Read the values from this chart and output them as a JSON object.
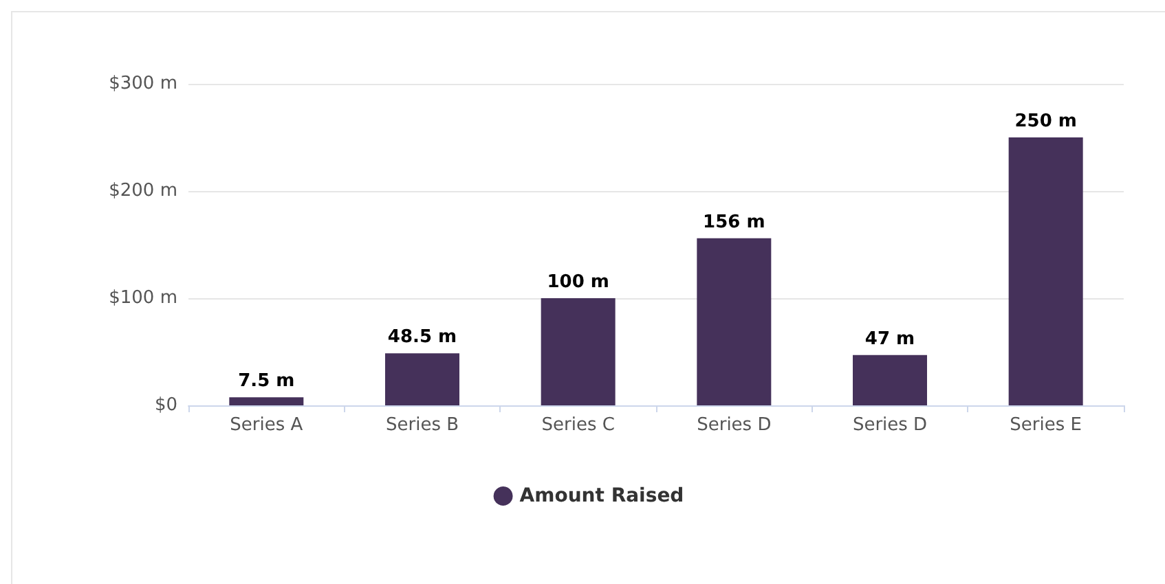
{
  "chart_data": {
    "type": "bar",
    "categories": [
      "Series A",
      "Series B",
      "Series C",
      "Series D",
      "Series D",
      "Series E"
    ],
    "series": [
      {
        "name": "Amount Raised",
        "color": "#45315a",
        "values": [
          7.5,
          48.5,
          100,
          156,
          47,
          250
        ],
        "value_labels": [
          "7.5 m",
          "48.5 m",
          "100 m",
          "156 m",
          "47 m",
          "250 m"
        ]
      }
    ],
    "ylim": [
      0,
      300
    ],
    "yticks": [
      {
        "value": 0,
        "label": "$0"
      },
      {
        "value": 100,
        "label": "$100 m"
      },
      {
        "value": 200,
        "label": "$200 m"
      },
      {
        "value": 300,
        "label": "$300 m"
      }
    ],
    "grid": "y",
    "legend": "bottom"
  }
}
